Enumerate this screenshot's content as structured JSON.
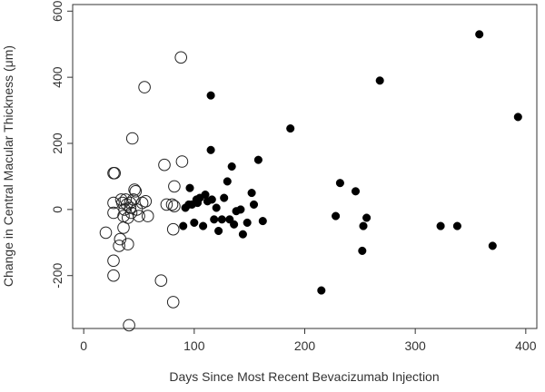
{
  "chart_data": {
    "type": "scatter",
    "xlabel": "Days Since Most Recent Bevacizumab Injection",
    "ylabel": "Change in Central Macular Thickness (μm)",
    "xlim": [
      -10,
      410
    ],
    "ylim": [
      -360,
      620
    ],
    "xticks": [
      0,
      100,
      200,
      300,
      400
    ],
    "yticks": [
      -200,
      0,
      200,
      400,
      600
    ],
    "ytick_labels": [
      "-200",
      "0",
      "200",
      "400",
      "600"
    ],
    "grid": false,
    "series": [
      {
        "marker": "open-circle",
        "points": [
          [
            20,
            -70
          ],
          [
            27,
            110
          ],
          [
            28,
            110
          ],
          [
            27,
            20
          ],
          [
            27,
            -10
          ],
          [
            27,
            -155
          ],
          [
            27,
            -200
          ],
          [
            32,
            -110
          ],
          [
            33,
            -90
          ],
          [
            34,
            30
          ],
          [
            35,
            20
          ],
          [
            36,
            -20
          ],
          [
            36,
            -55
          ],
          [
            37,
            0
          ],
          [
            38,
            30
          ],
          [
            39,
            15
          ],
          [
            40,
            -25
          ],
          [
            40,
            -105
          ],
          [
            41,
            -350
          ],
          [
            42,
            20
          ],
          [
            42,
            5
          ],
          [
            43,
            -10
          ],
          [
            44,
            215
          ],
          [
            45,
            30
          ],
          [
            46,
            60
          ],
          [
            47,
            55
          ],
          [
            48,
            0
          ],
          [
            50,
            -20
          ],
          [
            53,
            20
          ],
          [
            55,
            370
          ],
          [
            56,
            25
          ],
          [
            58,
            -20
          ],
          [
            70,
            -215
          ],
          [
            73,
            135
          ],
          [
            75,
            15
          ],
          [
            80,
            15
          ],
          [
            82,
            10
          ],
          [
            82,
            70
          ],
          [
            81,
            -60
          ],
          [
            81,
            -280
          ],
          [
            88,
            460
          ],
          [
            89,
            145
          ]
        ]
      },
      {
        "marker": "filled-circle",
        "points": [
          [
            90,
            -50
          ],
          [
            92,
            5
          ],
          [
            95,
            15
          ],
          [
            96,
            65
          ],
          [
            98,
            15
          ],
          [
            100,
            -40
          ],
          [
            102,
            30
          ],
          [
            103,
            20
          ],
          [
            105,
            35
          ],
          [
            108,
            -50
          ],
          [
            110,
            45
          ],
          [
            112,
            25
          ],
          [
            115,
            345
          ],
          [
            115,
            180
          ],
          [
            116,
            30
          ],
          [
            118,
            -30
          ],
          [
            120,
            5
          ],
          [
            122,
            -65
          ],
          [
            125,
            -30
          ],
          [
            127,
            35
          ],
          [
            130,
            85
          ],
          [
            132,
            -30
          ],
          [
            134,
            130
          ],
          [
            136,
            -45
          ],
          [
            138,
            -5
          ],
          [
            142,
            0
          ],
          [
            144,
            -75
          ],
          [
            148,
            -40
          ],
          [
            152,
            50
          ],
          [
            154,
            15
          ],
          [
            158,
            150
          ],
          [
            162,
            -35
          ],
          [
            187,
            245
          ],
          [
            215,
            -245
          ],
          [
            228,
            -20
          ],
          [
            232,
            80
          ],
          [
            246,
            55
          ],
          [
            252,
            -125
          ],
          [
            253,
            -50
          ],
          [
            256,
            -25
          ],
          [
            268,
            390
          ],
          [
            323,
            -50
          ],
          [
            338,
            -50
          ],
          [
            358,
            530
          ],
          [
            370,
            -110
          ],
          [
            393,
            280
          ]
        ]
      }
    ]
  }
}
